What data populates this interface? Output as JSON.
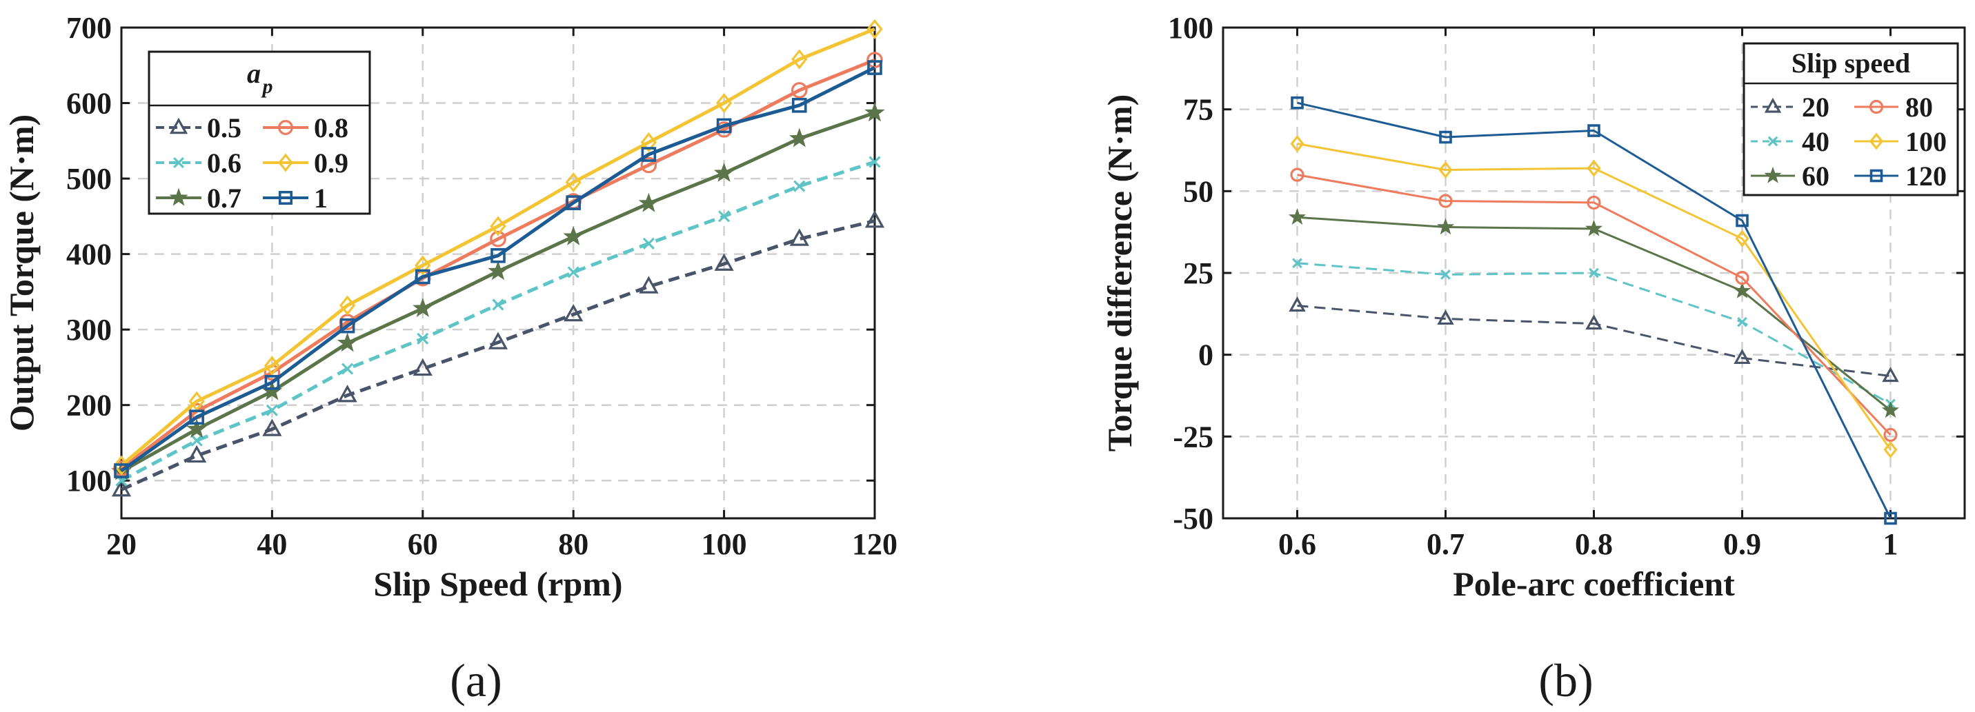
{
  "chart_data": [
    {
      "type": "line",
      "panel_label": "(a)",
      "xlabel": "Slip Speed (rpm)",
      "ylabel": "Output Torque (N·m)",
      "xlim": [
        20,
        120
      ],
      "ylim": [
        50,
        700
      ],
      "xticks": [
        20,
        40,
        60,
        80,
        100,
        120
      ],
      "yticks": [
        100,
        200,
        300,
        400,
        500,
        600,
        700
      ],
      "grid": true,
      "legend": {
        "title_main": "a",
        "title_sub": "p",
        "placement": "top-left",
        "columns": 2
      },
      "x": [
        20,
        30,
        40,
        50,
        60,
        70,
        80,
        90,
        100,
        110,
        120
      ],
      "series": [
        {
          "name": "0.5",
          "color": "#4a5469",
          "dash": "dashed",
          "marker": "triangle",
          "values": [
            88,
            133,
            168,
            213,
            248,
            283,
            320,
            357,
            387,
            420,
            444
          ]
        },
        {
          "name": "0.6",
          "color": "#5ec4c6",
          "dash": "dashed",
          "marker": "x",
          "values": [
            100,
            153,
            193,
            248,
            288,
            333,
            376,
            414,
            450,
            490,
            522
          ]
        },
        {
          "name": "0.7",
          "color": "#5b7449",
          "dash": "solid",
          "marker": "star",
          "values": [
            112,
            168,
            218,
            282,
            328,
            377,
            423,
            467,
            507,
            553,
            587
          ]
        },
        {
          "name": "0.8",
          "color": "#ee7b5e",
          "dash": "solid",
          "marker": "circle",
          "values": [
            116,
            192,
            243,
            310,
            368,
            420,
            470,
            518,
            565,
            617,
            657
          ]
        },
        {
          "name": "0.9",
          "color": "#f3c433",
          "dash": "solid",
          "marker": "diamond",
          "values": [
            120,
            205,
            252,
            332,
            385,
            437,
            495,
            548,
            600,
            658,
            698
          ]
        },
        {
          "name": "1",
          "color": "#1d5b94",
          "dash": "solid",
          "marker": "square",
          "values": [
            113,
            184,
            230,
            305,
            370,
            398,
            468,
            532,
            570,
            597,
            647
          ]
        }
      ]
    },
    {
      "type": "line",
      "panel_label": "(b)",
      "xlabel": "Pole-arc coefficient",
      "ylabel": "Torque difference (N·m)",
      "xlim": [
        0.55,
        1.05
      ],
      "ylim": [
        -50,
        100
      ],
      "xticks": [
        0.6,
        0.7,
        0.8,
        0.9,
        1
      ],
      "xticklabels": [
        "0.6",
        "0.7",
        "0.8",
        "0.9",
        "1"
      ],
      "yticks": [
        -50,
        -25,
        0,
        25,
        50,
        75,
        100
      ],
      "grid": true,
      "legend": {
        "title": "Slip speed",
        "placement": "top-right",
        "columns": 2
      },
      "x": [
        0.6,
        0.7,
        0.8,
        0.9,
        1
      ],
      "series": [
        {
          "name": "20",
          "color": "#4a5469",
          "dash": "dashed",
          "marker": "triangle",
          "values": [
            15,
            11,
            9.5,
            -1,
            -6.5
          ]
        },
        {
          "name": "40",
          "color": "#5ec4c6",
          "dash": "dashed",
          "marker": "x",
          "values": [
            28,
            24.5,
            25,
            10,
            -15
          ]
        },
        {
          "name": "60",
          "color": "#5b7449",
          "dash": "solid",
          "marker": "star",
          "values": [
            42,
            39,
            38.5,
            19.5,
            -17
          ]
        },
        {
          "name": "80",
          "color": "#ee7b5e",
          "dash": "solid",
          "marker": "circle",
          "values": [
            55,
            47,
            46.5,
            23.5,
            -24.5
          ]
        },
        {
          "name": "100",
          "color": "#f3c433",
          "dash": "solid",
          "marker": "diamond",
          "values": [
            64.5,
            56.5,
            57,
            35.5,
            -29
          ]
        },
        {
          "name": "120",
          "color": "#1d5b94",
          "dash": "solid",
          "marker": "square",
          "values": [
            77,
            66.5,
            68.5,
            41,
            -50
          ]
        }
      ]
    }
  ]
}
